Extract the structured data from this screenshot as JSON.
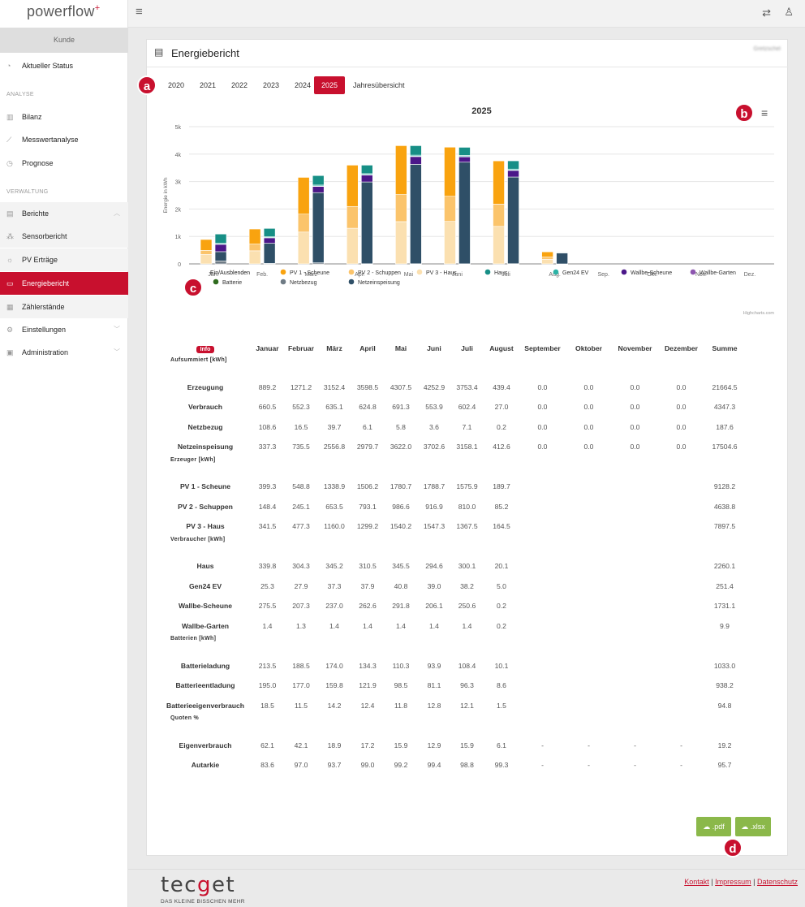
{
  "app": {
    "logo_text": "powerflow",
    "logo_plus": "+",
    "kunde": "Kunde"
  },
  "sidebar": {
    "status": "Aktueller Status",
    "section_analyse": "ANALYSE",
    "bilanz": "Bilanz",
    "messwert": "Messwertanalyse",
    "prognose": "Prognose",
    "section_verwaltung": "VERWALTUNG",
    "berichte": "Berichte",
    "sensorbericht": "Sensorbericht",
    "pv_ertraege": "PV Erträge",
    "energiebericht": "Energiebericht",
    "zaehlerstaende": "Zählerstände",
    "einstellungen": "Einstellungen",
    "administration": "Administration"
  },
  "panel": {
    "title": "Energiebericht",
    "chip": "Gretzschel"
  },
  "years": [
    "2020",
    "2021",
    "2022",
    "2023",
    "2024",
    "2025",
    "Jahresübersicht"
  ],
  "active_year": "2025",
  "badges": {
    "a": "a",
    "b": "b",
    "c": "c",
    "d": "d"
  },
  "chart_data": {
    "type": "bar",
    "title": "2025",
    "ylabel": "Energie in kWh",
    "ylim": [
      0,
      5000
    ],
    "yticks": [
      "0",
      "1k",
      "2k",
      "3k",
      "4k",
      "5k"
    ],
    "categories": [
      "Jan.",
      "Feb.",
      "März",
      "Apr.",
      "Mai",
      "Juni",
      "Juli",
      "Aug.",
      "Sep.",
      "Okt.",
      "Nov.",
      "Dez."
    ],
    "stacks": {
      "generation": [
        "PV 3 - Haus",
        "PV 2 - Schuppen",
        "PV 1 - Scheune"
      ],
      "consumption": [
        "Batterie",
        "Netzbezug",
        "Netzeinspeisung",
        "Wallbe-Scheune",
        "Wallbe-Garten",
        "Gen24 EV",
        "Haus"
      ]
    },
    "series": [
      {
        "name": "PV 1 - Scheune",
        "color": "#f9a30f",
        "values": [
          399.3,
          548.8,
          1338.9,
          1506.2,
          1780.7,
          1788.7,
          1575.9,
          189.7,
          0,
          0,
          0,
          0
        ]
      },
      {
        "name": "PV 2 - Schuppen",
        "color": "#fbc46b",
        "values": [
          148.4,
          245.1,
          653.5,
          793.1,
          986.6,
          916.9,
          810.0,
          85.2,
          0,
          0,
          0,
          0
        ]
      },
      {
        "name": "PV 3 - Haus",
        "color": "#fbe0b0",
        "values": [
          341.5,
          477.3,
          1160.0,
          1299.2,
          1540.2,
          1547.3,
          1367.5,
          164.5,
          0,
          0,
          0,
          0
        ]
      },
      {
        "name": "Haus",
        "color": "#178f86",
        "values": [
          339.8,
          304.3,
          345.2,
          310.5,
          345.5,
          294.6,
          300.1,
          20.1,
          0,
          0,
          0,
          0
        ]
      },
      {
        "name": "Gen24 EV",
        "color": "#2cb3a6",
        "values": [
          25.3,
          27.9,
          37.3,
          37.9,
          40.8,
          39.0,
          38.2,
          5.0,
          0,
          0,
          0,
          0
        ]
      },
      {
        "name": "Wallbe-Scheune",
        "color": "#4b1789",
        "values": [
          275.5,
          207.3,
          237.0,
          262.6,
          291.8,
          206.1,
          250.6,
          0.2,
          0,
          0,
          0,
          0
        ]
      },
      {
        "name": "Wallbe-Garten",
        "color": "#8d56b0",
        "values": [
          1.4,
          1.3,
          1.4,
          1.4,
          1.4,
          1.4,
          1.4,
          0.2,
          0,
          0,
          0,
          0
        ]
      },
      {
        "name": "Batterie",
        "color": "#2f6b1e",
        "values": [
          0,
          0,
          0,
          0,
          0,
          0,
          0,
          0,
          0,
          0,
          0,
          0
        ]
      },
      {
        "name": "Netzbezug",
        "color": "#6f7b85",
        "values": [
          108.6,
          16.5,
          39.7,
          6.1,
          5.8,
          3.6,
          7.1,
          0.2,
          0,
          0,
          0,
          0
        ]
      },
      {
        "name": "Netzeinspeisung",
        "color": "#2f4f67",
        "values": [
          337.3,
          735.5,
          2556.8,
          2979.7,
          3622.0,
          3702.6,
          3158.1,
          412.6,
          0,
          0,
          0,
          0
        ]
      }
    ],
    "legend_toggle": "Ein/Ausblenden",
    "credit": "Highcharts.com"
  },
  "table": {
    "info": "Info",
    "headers": [
      "Januar",
      "Februar",
      "März",
      "April",
      "Mai",
      "Juni",
      "Juli",
      "August",
      "September",
      "Oktober",
      "November",
      "Dezember",
      "Summe"
    ],
    "sections": [
      {
        "title": "Aufsummiert [kWh]",
        "rows": [
          {
            "label": "Erzeugung",
            "values": [
              "889.2",
              "1271.2",
              "3152.4",
              "3598.5",
              "4307.5",
              "4252.9",
              "3753.4",
              "439.4",
              "0.0",
              "0.0",
              "0.0",
              "0.0",
              "21664.5"
            ]
          },
          {
            "label": "Verbrauch",
            "values": [
              "660.5",
              "552.3",
              "635.1",
              "624.8",
              "691.3",
              "553.9",
              "602.4",
              "27.0",
              "0.0",
              "0.0",
              "0.0",
              "0.0",
              "4347.3"
            ]
          },
          {
            "label": "Netzbezug",
            "values": [
              "108.6",
              "16.5",
              "39.7",
              "6.1",
              "5.8",
              "3.6",
              "7.1",
              "0.2",
              "0.0",
              "0.0",
              "0.0",
              "0.0",
              "187.6"
            ]
          },
          {
            "label": "Netzeinspeisung",
            "values": [
              "337.3",
              "735.5",
              "2556.8",
              "2979.7",
              "3622.0",
              "3702.6",
              "3158.1",
              "412.6",
              "0.0",
              "0.0",
              "0.0",
              "0.0",
              "17504.6"
            ]
          }
        ]
      },
      {
        "title": "Erzeuger [kWh]",
        "rows": [
          {
            "label": "PV 1 - Scheune",
            "values": [
              "399.3",
              "548.8",
              "1338.9",
              "1506.2",
              "1780.7",
              "1788.7",
              "1575.9",
              "189.7",
              "",
              "",
              "",
              "",
              "9128.2"
            ]
          },
          {
            "label": "PV 2 - Schuppen",
            "values": [
              "148.4",
              "245.1",
              "653.5",
              "793.1",
              "986.6",
              "916.9",
              "810.0",
              "85.2",
              "",
              "",
              "",
              "",
              "4638.8"
            ]
          },
          {
            "label": "PV 3 - Haus",
            "values": [
              "341.5",
              "477.3",
              "1160.0",
              "1299.2",
              "1540.2",
              "1547.3",
              "1367.5",
              "164.5",
              "",
              "",
              "",
              "",
              "7897.5"
            ]
          }
        ]
      },
      {
        "title": "Verbraucher [kWh]",
        "rows": [
          {
            "label": "Haus",
            "values": [
              "339.8",
              "304.3",
              "345.2",
              "310.5",
              "345.5",
              "294.6",
              "300.1",
              "20.1",
              "",
              "",
              "",
              "",
              "2260.1"
            ]
          },
          {
            "label": "Gen24 EV",
            "values": [
              "25.3",
              "27.9",
              "37.3",
              "37.9",
              "40.8",
              "39.0",
              "38.2",
              "5.0",
              "",
              "",
              "",
              "",
              "251.4"
            ]
          },
          {
            "label": "Wallbe-Scheune",
            "values": [
              "275.5",
              "207.3",
              "237.0",
              "262.6",
              "291.8",
              "206.1",
              "250.6",
              "0.2",
              "",
              "",
              "",
              "",
              "1731.1"
            ]
          },
          {
            "label": "Wallbe-Garten",
            "values": [
              "1.4",
              "1.3",
              "1.4",
              "1.4",
              "1.4",
              "1.4",
              "1.4",
              "0.2",
              "",
              "",
              "",
              "",
              "9.9"
            ]
          }
        ]
      },
      {
        "title": "Batterien [kWh]",
        "rows": [
          {
            "label": "Batterieladung",
            "values": [
              "213.5",
              "188.5",
              "174.0",
              "134.3",
              "110.3",
              "93.9",
              "108.4",
              "10.1",
              "",
              "",
              "",
              "",
              "1033.0"
            ]
          },
          {
            "label": "Batterieentladung",
            "values": [
              "195.0",
              "177.0",
              "159.8",
              "121.9",
              "98.5",
              "81.1",
              "96.3",
              "8.6",
              "",
              "",
              "",
              "",
              "938.2"
            ]
          },
          {
            "label": "Batterieeigenverbrauch",
            "values": [
              "18.5",
              "11.5",
              "14.2",
              "12.4",
              "11.8",
              "12.8",
              "12.1",
              "1.5",
              "",
              "",
              "",
              "",
              "94.8"
            ]
          }
        ]
      },
      {
        "title": "Quoten %",
        "rows": [
          {
            "label": "Eigenverbrauch",
            "values": [
              "62.1",
              "42.1",
              "18.9",
              "17.2",
              "15.9",
              "12.9",
              "15.9",
              "6.1",
              "-",
              "-",
              "-",
              "-",
              "19.2"
            ]
          },
          {
            "label": "Autarkie",
            "values": [
              "83.6",
              "97.0",
              "93.7",
              "99.0",
              "99.2",
              "99.4",
              "98.8",
              "99.3",
              "-",
              "-",
              "-",
              "-",
              "95.7"
            ]
          }
        ]
      }
    ]
  },
  "buttons": {
    "pdf": ".pdf",
    "xlsx": ".xlsx"
  },
  "footer": {
    "brand_pre": "tec",
    "brand_g": "g",
    "brand_post": "et",
    "slogan": "DAS KLEINE BISSCHEN MEHR",
    "kontakt": "Kontakt",
    "impressum": "Impressum",
    "datenschutz": "Datenschutz",
    "sep": " | "
  }
}
